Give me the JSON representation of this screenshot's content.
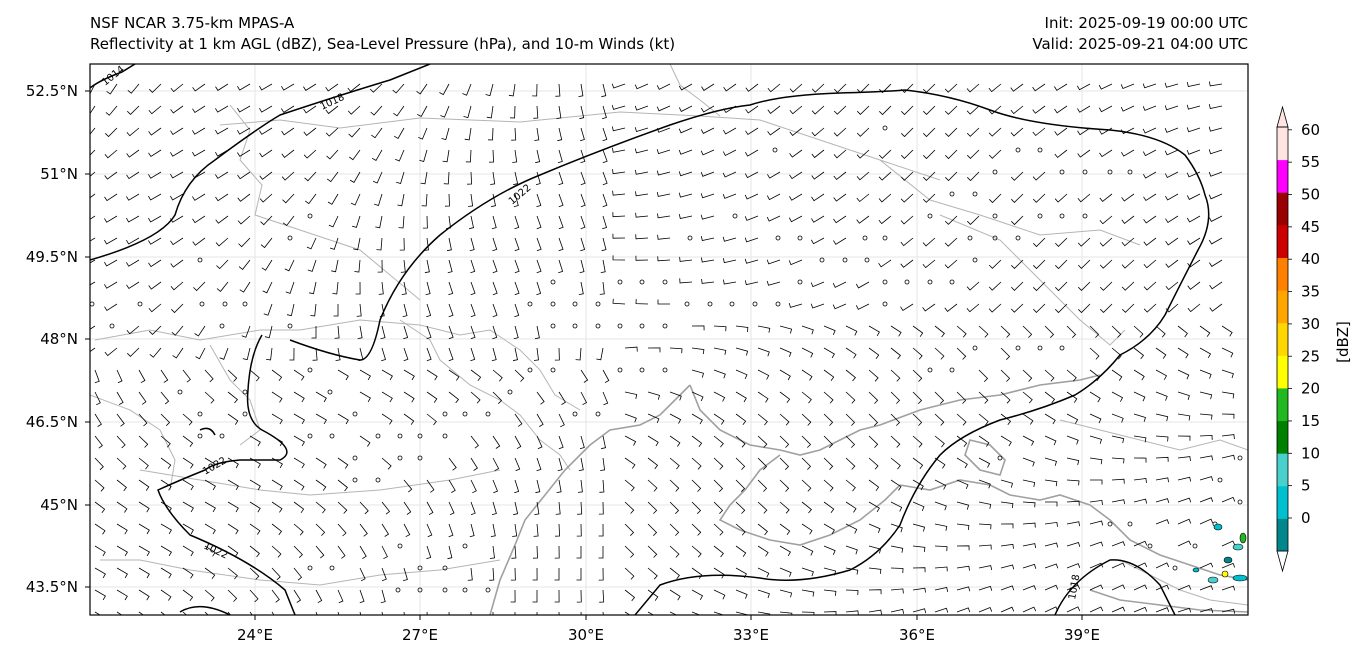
{
  "header": {
    "model": "NSF NCAR 3.75-km MPAS-A",
    "fields": "Reflectivity at 1 km AGL (dBZ), Sea-Level Pressure (hPa), and 10-m Winds (kt)",
    "init": "Init: 2025-09-19 00:00 UTC",
    "valid": "Valid: 2025-09-21 04:00 UTC"
  },
  "map": {
    "lon_range": [
      21,
      42
    ],
    "lat_range": [
      43,
      53
    ],
    "lon_ticks": [
      "24°E",
      "27°E",
      "30°E",
      "33°E",
      "36°E",
      "39°E"
    ],
    "lat_ticks": [
      "52.5°N",
      "51°N",
      "49.5°N",
      "48°N",
      "46.5°N",
      "45°N",
      "43.5°N"
    ],
    "isobar_labels": [
      "1014",
      "1018",
      "1022",
      "1022",
      "1022",
      "1018"
    ],
    "colors": {
      "isobar": "#000000",
      "coastline": "#a0a0a0",
      "border": "#b5b5b5",
      "barb": "#000000"
    }
  },
  "colorbar": {
    "label": "[dBZ]",
    "ticks": [
      "0",
      "5",
      "10",
      "15",
      "20",
      "25",
      "30",
      "35",
      "40",
      "45",
      "50",
      "55",
      "60"
    ],
    "colors": [
      "#00868b",
      "#00bfcf",
      "#48d1cc",
      "#008000",
      "#22b822",
      "#ffff00",
      "#ffd700",
      "#ffa500",
      "#ff7f00",
      "#cc0000",
      "#990000",
      "#ff00ff",
      "#ffe4e1"
    ]
  }
}
